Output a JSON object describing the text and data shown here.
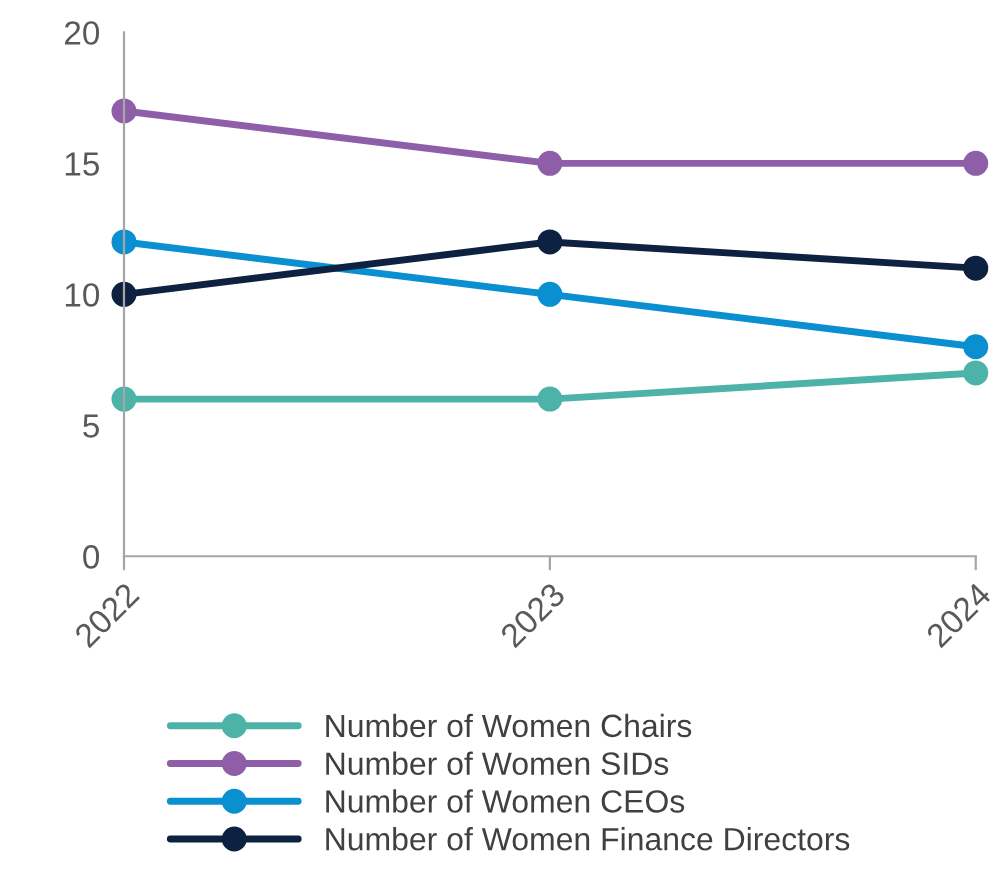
{
  "chart_data": {
    "type": "line",
    "categories": [
      "2022",
      "2023",
      "2024"
    ],
    "series": [
      {
        "name": "Number of Women Chairs",
        "color": "#4db3a9",
        "values": [
          6,
          6,
          7
        ]
      },
      {
        "name": "Number of Women SIDs",
        "color": "#8e5fa8",
        "values": [
          17,
          15,
          15
        ]
      },
      {
        "name": "Number of Women CEOs",
        "color": "#0a8fd0",
        "values": [
          12,
          10,
          8
        ]
      },
      {
        "name": "Number of Women Finance Directors",
        "color": "#0d2240",
        "values": [
          10,
          12,
          11
        ]
      }
    ],
    "ylim": [
      0,
      20
    ],
    "yticks": [
      0,
      5,
      10,
      15,
      20
    ],
    "grid": false,
    "legend": "bottom",
    "marker": "circle",
    "line_style": "solid"
  }
}
